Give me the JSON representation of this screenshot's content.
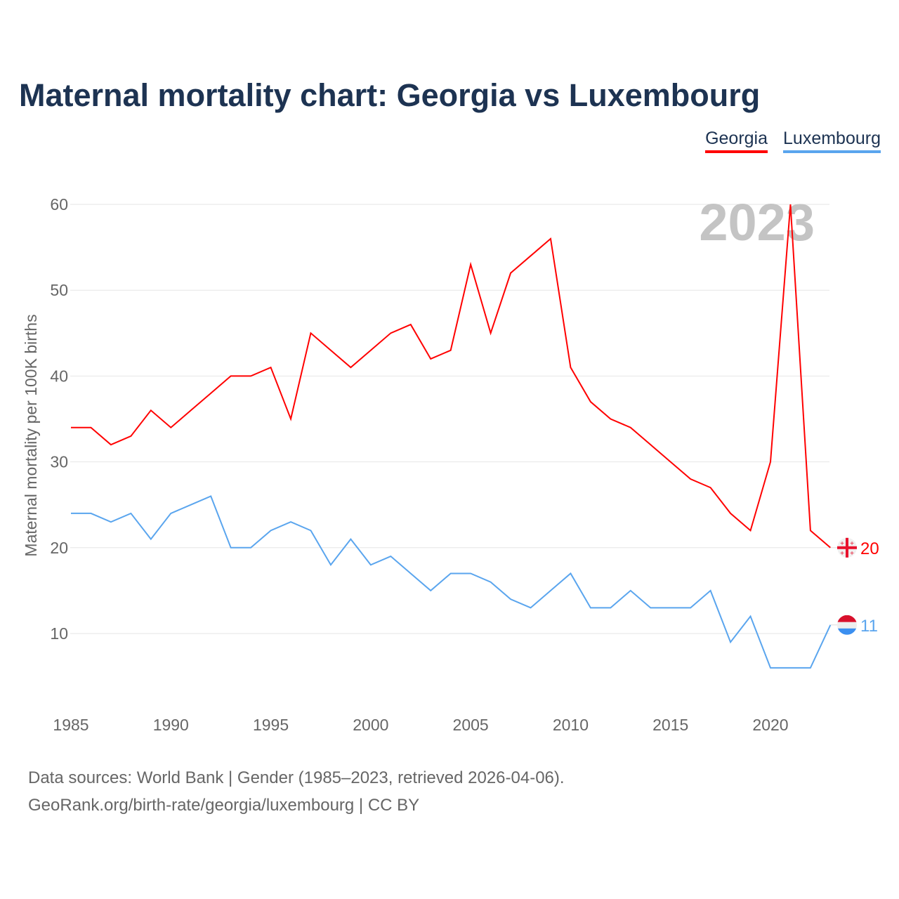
{
  "title": "Maternal mortality chart: Georgia vs Luxembourg",
  "source_line1": "Data sources: World Bank | Gender (1985–2023, retrieved 2026-04-06).",
  "source_line2": "GeoRank.org/birth-rate/georgia/luxembourg | CC BY",
  "chart_data": {
    "type": "line",
    "title": "Maternal mortality chart: Georgia vs Luxembourg",
    "ylabel": "Maternal mortality per 100K births",
    "xlabel": "",
    "year_label": "2023",
    "ylim": [
      2,
      62
    ],
    "yticks": [
      10,
      20,
      30,
      40,
      50,
      60
    ],
    "xticks": [
      1985,
      1990,
      1995,
      2000,
      2005,
      2010,
      2015,
      2020
    ],
    "x": [
      1985,
      1986,
      1987,
      1988,
      1989,
      1990,
      1991,
      1992,
      1993,
      1994,
      1995,
      1996,
      1997,
      1998,
      1999,
      2000,
      2001,
      2002,
      2003,
      2004,
      2005,
      2006,
      2007,
      2008,
      2009,
      2010,
      2011,
      2012,
      2013,
      2014,
      2015,
      2016,
      2017,
      2018,
      2019,
      2020,
      2021,
      2022,
      2023
    ],
    "legend_position": "top-right",
    "series": [
      {
        "name": "Georgia",
        "color": "#ff0000",
        "end_label": "20",
        "values": [
          34,
          34,
          32,
          33,
          36,
          34,
          36,
          38,
          40,
          40,
          41,
          35,
          45,
          43,
          41,
          43,
          45,
          46,
          42,
          43,
          53,
          45,
          52,
          54,
          56,
          41,
          37,
          35,
          34,
          32,
          30,
          28,
          27,
          24,
          22,
          30,
          60,
          22,
          20
        ]
      },
      {
        "name": "Luxembourg",
        "color": "#5aa5ee",
        "end_label": "11",
        "values": [
          24,
          24,
          23,
          24,
          21,
          24,
          25,
          26,
          20,
          20,
          22,
          23,
          22,
          18,
          21,
          18,
          19,
          17,
          15,
          17,
          17,
          16,
          14,
          13,
          15,
          17,
          13,
          13,
          15,
          13,
          13,
          13,
          15,
          9,
          12,
          6,
          6,
          6,
          11
        ]
      }
    ]
  }
}
